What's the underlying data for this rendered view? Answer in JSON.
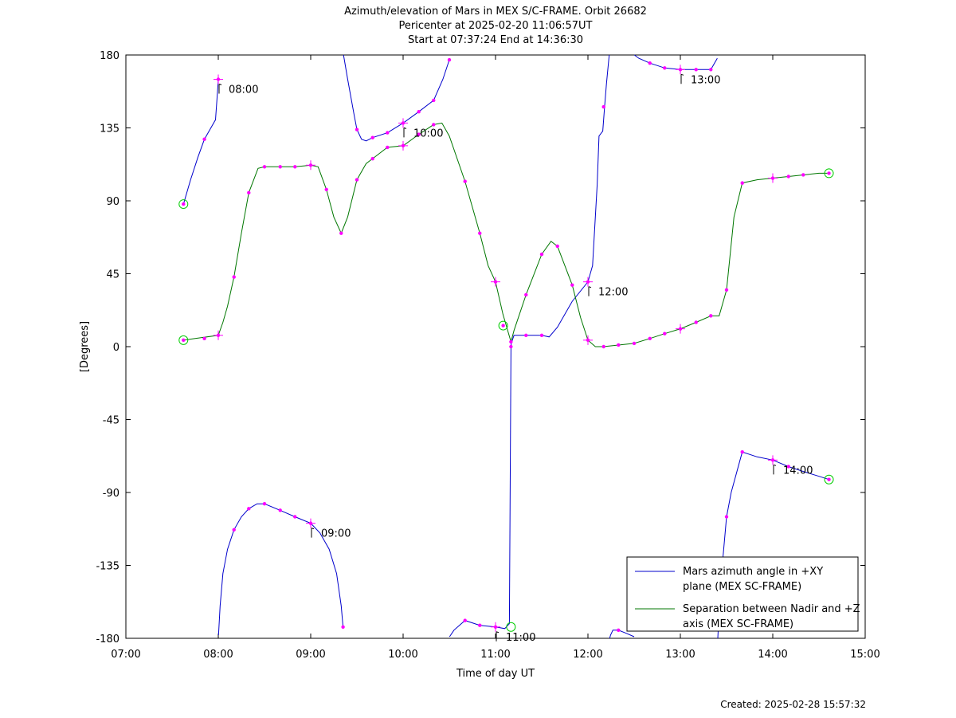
{
  "footer": {
    "created": "Created: 2025-02-28 15:57:32"
  },
  "chart_data": {
    "type": "line",
    "title": [
      "Azimuth/elevation of Mars in MEX S/C-FRAME.  Orbit 26682",
      "Pericenter at 2025-02-20 11:06:57UT",
      "Start at 07:37:24 End at 14:36:30"
    ],
    "xlabel": "Time of day UT",
    "ylabel": "[Degrees]",
    "xlim": [
      7,
      15
    ],
    "ylim": [
      -180,
      180
    ],
    "xticks": [
      7,
      8,
      9,
      10,
      11,
      12,
      13,
      14,
      15
    ],
    "xtick_labels": [
      "07:00",
      "08:00",
      "09:00",
      "10:00",
      "11:00",
      "12:00",
      "13:00",
      "14:00",
      "15:00"
    ],
    "yticks": [
      180,
      135,
      90,
      45,
      0,
      -45,
      -90,
      -135,
      -180
    ],
    "ytick_labels": [
      "180",
      "135",
      "90",
      "45",
      "0",
      "-45",
      "-90",
      "-135",
      "-180"
    ],
    "grid": false,
    "legend_position": "bottom-right",
    "colors": {
      "azimuth": "#0000cc",
      "separation": "#007700",
      "marker": "#ff00ff",
      "endpoint": "#00cc00"
    },
    "annotations": [
      {
        "label": "08:00",
        "x": 8.0,
        "y": 165
      },
      {
        "label": "09:00",
        "x": 9.0,
        "y": -109
      },
      {
        "label": "10:00",
        "x": 10.0,
        "y": 138
      },
      {
        "label": "11:00",
        "x": 11.0,
        "y": -173
      },
      {
        "label": "12:00",
        "x": 12.0,
        "y": 40
      },
      {
        "label": "13:00",
        "x": 13.0,
        "y": 171
      },
      {
        "label": "14:00",
        "x": 14.0,
        "y": -70
      }
    ],
    "series": [
      {
        "name": "Mars azimuth angle in +XY plane (MEX SC-FRAME)",
        "color": "#0000cc",
        "segments": [
          [
            [
              7.623,
              88
            ],
            [
              7.7,
              103
            ],
            [
              7.78,
              117
            ],
            [
              7.85,
              128
            ],
            [
              7.92,
              135
            ],
            [
              7.97,
              140
            ],
            [
              7.995,
              160
            ],
            [
              8.0,
              165
            ]
          ],
          [
            [
              8.003,
              -178
            ],
            [
              8.02,
              -160
            ],
            [
              8.05,
              -140
            ],
            [
              8.1,
              -125
            ],
            [
              8.17,
              -113
            ],
            [
              8.25,
              -105
            ],
            [
              8.33,
              -100
            ],
            [
              8.42,
              -97
            ],
            [
              8.5,
              -97
            ],
            [
              8.67,
              -101
            ],
            [
              8.83,
              -105
            ],
            [
              9.0,
              -109
            ],
            [
              9.1,
              -115
            ],
            [
              9.2,
              -125
            ],
            [
              9.28,
              -140
            ],
            [
              9.33,
              -160
            ],
            [
              9.35,
              -173
            ]
          ],
          [
            [
              9.355,
              180
            ],
            [
              9.4,
              165
            ],
            [
              9.47,
              143
            ],
            [
              9.5,
              134
            ],
            [
              9.55,
              128
            ],
            [
              9.6,
              127
            ],
            [
              9.67,
              129
            ],
            [
              9.83,
              132
            ],
            [
              10.0,
              138
            ],
            [
              10.17,
              145
            ],
            [
              10.33,
              152
            ],
            [
              10.43,
              165
            ],
            [
              10.5,
              177
            ]
          ],
          [
            [
              10.503,
              -179
            ],
            [
              10.55,
              -175
            ],
            [
              10.67,
              -169
            ],
            [
              10.83,
              -172
            ],
            [
              11.0,
              -173
            ],
            [
              11.1,
              -174
            ],
            [
              11.15,
              -171
            ],
            [
              11.167,
              0
            ],
            [
              11.17,
              2
            ],
            [
              11.2,
              7
            ],
            [
              11.33,
              7
            ],
            [
              11.5,
              7
            ],
            [
              11.58,
              6
            ],
            [
              11.67,
              12
            ],
            [
              11.83,
              28
            ],
            [
              12.0,
              40
            ],
            [
              12.05,
              50
            ],
            [
              12.1,
              100
            ],
            [
              12.12,
              130
            ],
            [
              12.16,
              133
            ],
            [
              12.18,
              148
            ],
            [
              12.2,
              162
            ],
            [
              12.23,
              180
            ]
          ],
          [
            [
              12.235,
              -180
            ],
            [
              12.245,
              -178
            ],
            [
              12.27,
              -175
            ],
            [
              12.33,
              -175
            ],
            [
              12.42,
              -177
            ],
            [
              12.5,
              -179
            ]
          ],
          [
            [
              12.503,
              180
            ],
            [
              12.55,
              178
            ],
            [
              12.67,
              175
            ],
            [
              12.83,
              172
            ],
            [
              13.0,
              171
            ],
            [
              13.17,
              171
            ],
            [
              13.33,
              171
            ],
            [
              13.4,
              178
            ]
          ],
          [
            [
              13.405,
              -180
            ],
            [
              13.43,
              -150
            ],
            [
              13.5,
              -105
            ],
            [
              13.55,
              -90
            ],
            [
              13.67,
              -65
            ],
            [
              13.83,
              -68
            ],
            [
              14.0,
              -70
            ],
            [
              14.17,
              -74
            ],
            [
              14.33,
              -77
            ],
            [
              14.5,
              -80
            ],
            [
              14.608,
              -82
            ]
          ]
        ],
        "markers": [
          [
            7.623,
            88
          ],
          [
            7.85,
            128
          ],
          [
            8.0,
            165
          ],
          [
            8.17,
            -113
          ],
          [
            8.33,
            -100
          ],
          [
            8.5,
            -97
          ],
          [
            8.67,
            -101
          ],
          [
            8.83,
            -105
          ],
          [
            9.0,
            -109
          ],
          [
            9.35,
            -173
          ],
          [
            9.5,
            134
          ],
          [
            9.67,
            129
          ],
          [
            9.83,
            132
          ],
          [
            10.0,
            138
          ],
          [
            10.17,
            145
          ],
          [
            10.33,
            152
          ],
          [
            10.5,
            177
          ],
          [
            10.67,
            -169
          ],
          [
            10.83,
            -172
          ],
          [
            11.0,
            -173
          ],
          [
            11.167,
            0
          ],
          [
            11.33,
            7
          ],
          [
            11.5,
            7
          ],
          [
            12.0,
            40
          ],
          [
            12.17,
            148
          ],
          [
            12.33,
            -175
          ],
          [
            12.67,
            175
          ],
          [
            12.83,
            172
          ],
          [
            13.0,
            171
          ],
          [
            13.17,
            171
          ],
          [
            13.33,
            171
          ],
          [
            13.5,
            -105
          ],
          [
            13.67,
            -65
          ],
          [
            14.0,
            -70
          ],
          [
            14.17,
            -74
          ],
          [
            14.608,
            -82
          ]
        ]
      },
      {
        "name": "Separation between Nadir and +Z axis (MEX SC-FRAME)",
        "color": "#007700",
        "segments": [
          [
            [
              7.623,
              4
            ],
            [
              7.75,
              5
            ],
            [
              8.0,
              7
            ],
            [
              8.05,
              15
            ],
            [
              8.1,
              25
            ],
            [
              8.17,
              43
            ],
            [
              8.25,
              70
            ],
            [
              8.33,
              95
            ],
            [
              8.43,
              110
            ],
            [
              8.5,
              111
            ],
            [
              8.67,
              111
            ],
            [
              8.83,
              111
            ],
            [
              9.0,
              112
            ],
            [
              9.08,
              111
            ],
            [
              9.17,
              97
            ],
            [
              9.25,
              80
            ],
            [
              9.33,
              70
            ],
            [
              9.4,
              80
            ],
            [
              9.5,
              103
            ],
            [
              9.6,
              113
            ],
            [
              9.67,
              116
            ],
            [
              9.83,
              123
            ],
            [
              10.0,
              124
            ],
            [
              10.17,
              131
            ],
            [
              10.33,
              137
            ],
            [
              10.42,
              138
            ],
            [
              10.5,
              130
            ],
            [
              10.67,
              102
            ],
            [
              10.83,
              70
            ],
            [
              10.92,
              50
            ],
            [
              11.0,
              40
            ],
            [
              11.08,
              20
            ],
            [
              11.167,
              3
            ],
            [
              11.2,
              10
            ],
            [
              11.33,
              32
            ],
            [
              11.5,
              57
            ],
            [
              11.6,
              65
            ],
            [
              11.67,
              62
            ],
            [
              11.75,
              50
            ],
            [
              11.83,
              38
            ],
            [
              11.92,
              18
            ],
            [
              12.0,
              4
            ],
            [
              12.08,
              0
            ],
            [
              12.17,
              0
            ],
            [
              12.33,
              1
            ],
            [
              12.5,
              2
            ],
            [
              12.67,
              5
            ],
            [
              12.83,
              8
            ],
            [
              13.0,
              11
            ],
            [
              13.17,
              15
            ],
            [
              13.33,
              19
            ],
            [
              13.42,
              19
            ],
            [
              13.5,
              35
            ],
            [
              13.58,
              80
            ],
            [
              13.67,
              101
            ],
            [
              13.83,
              103
            ],
            [
              14.0,
              104
            ],
            [
              14.17,
              105
            ],
            [
              14.33,
              106
            ],
            [
              14.5,
              107
            ],
            [
              14.608,
              107
            ]
          ]
        ],
        "markers": [
          [
            7.623,
            4
          ],
          [
            7.85,
            5
          ],
          [
            8.0,
            7
          ],
          [
            8.17,
            43
          ],
          [
            8.33,
            95
          ],
          [
            8.5,
            111
          ],
          [
            8.67,
            111
          ],
          [
            8.83,
            111
          ],
          [
            9.0,
            112
          ],
          [
            9.17,
            97
          ],
          [
            9.33,
            70
          ],
          [
            9.5,
            103
          ],
          [
            9.67,
            116
          ],
          [
            9.83,
            123
          ],
          [
            10.0,
            124
          ],
          [
            10.17,
            131
          ],
          [
            10.33,
            137
          ],
          [
            10.67,
            102
          ],
          [
            10.83,
            70
          ],
          [
            11.0,
            40
          ],
          [
            11.083,
            13
          ],
          [
            11.167,
            3
          ],
          [
            11.33,
            32
          ],
          [
            11.5,
            57
          ],
          [
            11.67,
            62
          ],
          [
            11.83,
            38
          ],
          [
            12.0,
            4
          ],
          [
            12.17,
            0
          ],
          [
            12.33,
            1
          ],
          [
            12.5,
            2
          ],
          [
            12.67,
            5
          ],
          [
            12.83,
            8
          ],
          [
            13.0,
            11
          ],
          [
            13.17,
            15
          ],
          [
            13.33,
            19
          ],
          [
            13.5,
            35
          ],
          [
            13.67,
            101
          ],
          [
            14.0,
            104
          ],
          [
            14.17,
            105
          ],
          [
            14.33,
            106
          ],
          [
            14.608,
            107
          ]
        ]
      }
    ],
    "endpoint_circles": [
      [
        7.623,
        88
      ],
      [
        7.623,
        4
      ],
      [
        11.083,
        13
      ],
      [
        11.167,
        -173
      ],
      [
        14.608,
        107
      ],
      [
        14.608,
        -82
      ]
    ],
    "hour_crosses": [
      [
        8.0,
        165
      ],
      [
        8.0,
        7
      ],
      [
        9.0,
        -109
      ],
      [
        9.0,
        112
      ],
      [
        10.0,
        138
      ],
      [
        10.0,
        124
      ],
      [
        11.0,
        -173
      ],
      [
        11.0,
        40
      ],
      [
        12.0,
        40
      ],
      [
        12.0,
        4
      ],
      [
        13.0,
        171
      ],
      [
        13.0,
        11
      ],
      [
        14.0,
        -70
      ],
      [
        14.0,
        104
      ]
    ]
  }
}
